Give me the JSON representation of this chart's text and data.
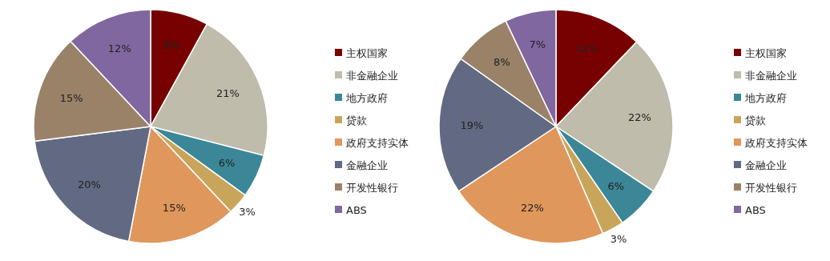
{
  "chart_data": [
    {
      "type": "pie",
      "categories": [
        "主权国家",
        "非金融企业",
        "地方政府",
        "贷款",
        "政府支持实体",
        "金融企业",
        "开发性银行",
        "ABS"
      ],
      "values": [
        8,
        21,
        6,
        3,
        15,
        20,
        15,
        12
      ],
      "value_labels": [
        "8%",
        "21%",
        "6%",
        "3%",
        "15%",
        "20%",
        "15%",
        "12%"
      ],
      "colors": [
        "#770000",
        "#bfbcab",
        "#3b8798",
        "#c9a55b",
        "#df975c",
        "#626a83",
        "#9a8268",
        "#8067a0"
      ],
      "legend": "right"
    },
    {
      "type": "pie",
      "categories": [
        "主权国家",
        "非金融企业",
        "地方政府",
        "贷款",
        "政府支持实体",
        "金融企业",
        "开发性银行",
        "ABS"
      ],
      "values": [
        12,
        22,
        6,
        3,
        22,
        19,
        8,
        7
      ],
      "value_labels": [
        "12%",
        "22%",
        "6%",
        "3%",
        "22%",
        "19%",
        "8%",
        "7%"
      ],
      "colors": [
        "#770000",
        "#bfbcab",
        "#3b8798",
        "#c9a55b",
        "#df975c",
        "#626a83",
        "#9a8268",
        "#8067a0"
      ],
      "legend": "right"
    }
  ]
}
